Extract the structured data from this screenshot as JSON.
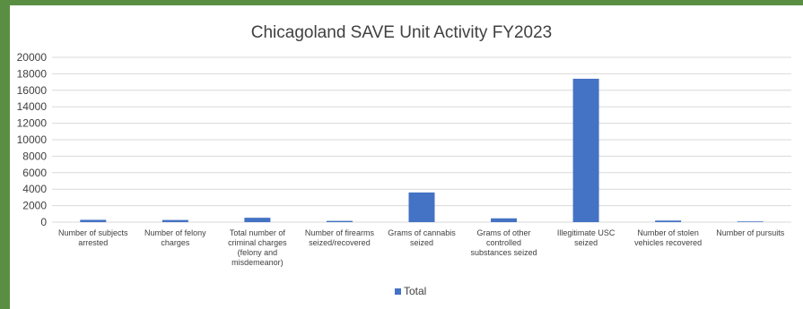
{
  "chart_data": {
    "type": "bar",
    "title": "Chicagoland SAVE Unit Activity FY2023",
    "categories": [
      [
        "Number of subjects",
        "arrested"
      ],
      [
        "Number of felony",
        "charges"
      ],
      [
        "Total number of",
        "criminal charges",
        "(felony and",
        "misdemeanor)"
      ],
      [
        "Number of firearms",
        "seized/recovered"
      ],
      [
        "Grams of cannabis",
        "seized"
      ],
      [
        "Grams of other",
        "controlled",
        "substances seized"
      ],
      [
        "Illegitimate USC",
        "seized"
      ],
      [
        "Number of stolen",
        "vehicles recovered"
      ],
      [
        "Number of pursuits"
      ]
    ],
    "series": [
      {
        "name": "Total",
        "values": [
          280,
          260,
          530,
          150,
          3600,
          460,
          17400,
          190,
          80
        ]
      }
    ],
    "ylim": [
      0,
      20000
    ],
    "yticks": [
      0,
      2000,
      4000,
      6000,
      8000,
      10000,
      12000,
      14000,
      16000,
      18000,
      20000
    ],
    "grid": true,
    "legend_position": "bottom",
    "colors": {
      "bar": "#4472c4",
      "grid": "#d9d9d9",
      "frame": "#5a8f43"
    }
  }
}
